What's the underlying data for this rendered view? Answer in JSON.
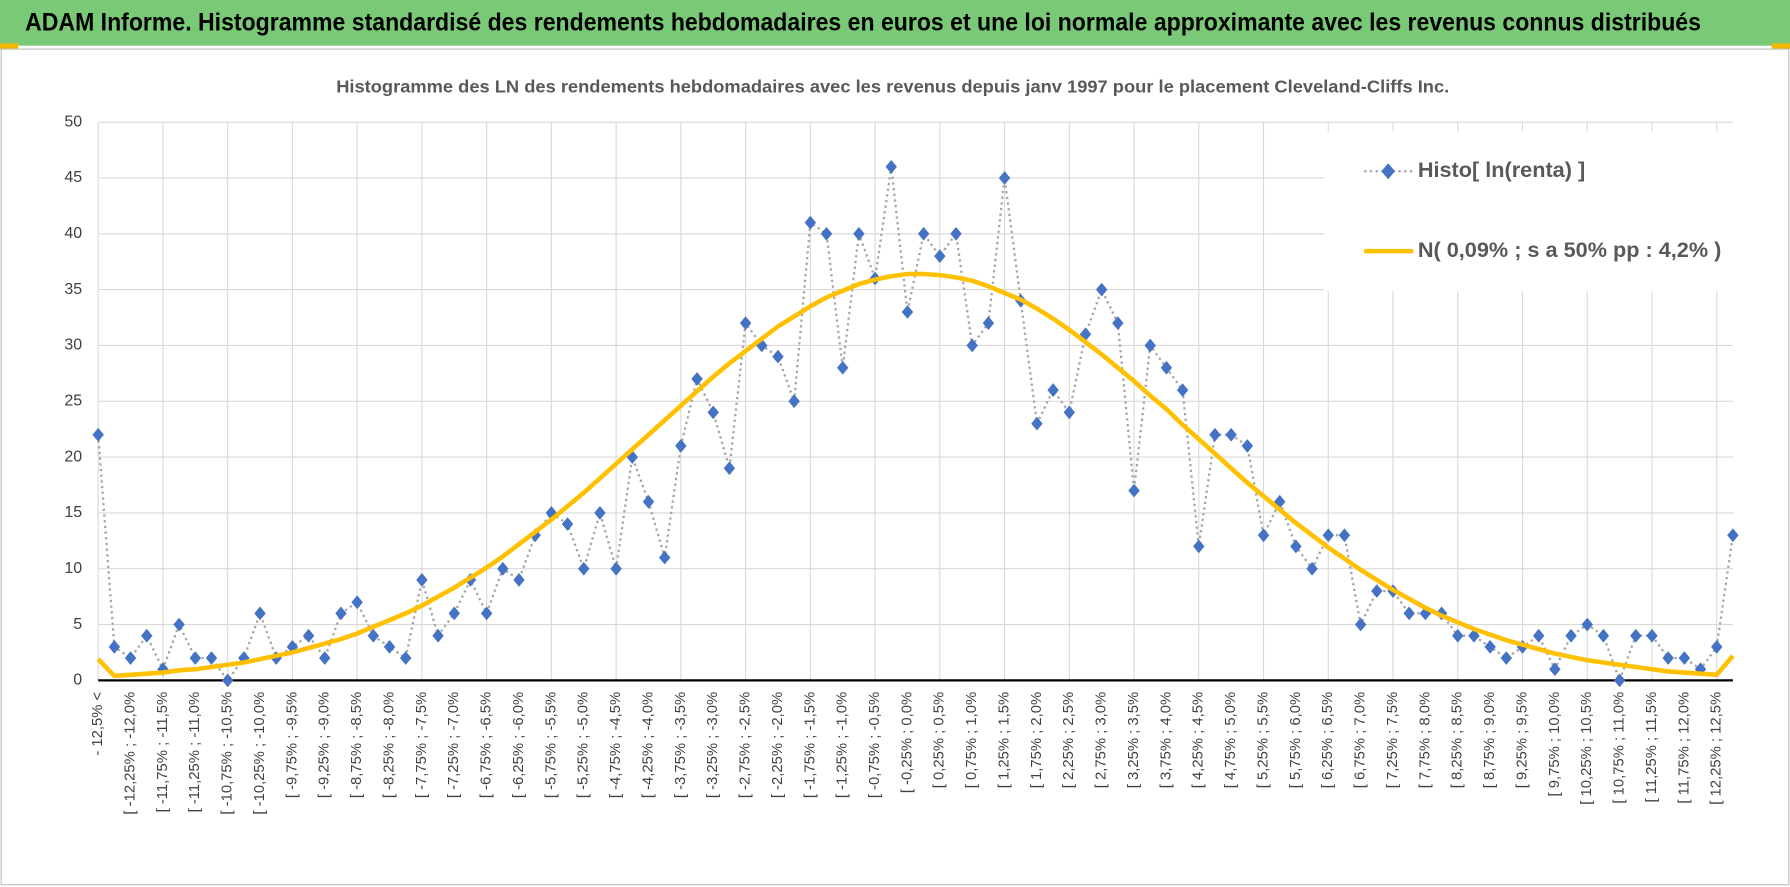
{
  "header": {
    "title": "ADAM Informe. Histogramme standardisé des rendements hebdomadaires en euros et une loi normale approximante avec les revenus connus distribués"
  },
  "chart_data": {
    "type": "line",
    "title": "Histogramme des LN des rendements hebdomadaires avec les revenus depuis janv 1997 pour le placement Cleveland-Cliffs Inc.",
    "categories": [
      "- 12,5% <",
      null,
      "[ -12,25% ; -12,0%",
      null,
      "[ -11,75% ; -11,5%",
      null,
      "[ -11,25% ; -11,0%",
      null,
      "[ -10,75% ; -10,5%",
      null,
      "[ -10,25% ; -10,0%",
      null,
      "[ -9,75% ; -9,5%",
      null,
      "[ -9,25% ; -9,0%",
      null,
      "[ -8,75% ; -8,5%",
      null,
      "[ -8,25% ; -8,0%",
      null,
      "[ -7,75% ; -7,5%",
      null,
      "[ -7,25% ; -7,0%",
      null,
      "[ -6,75% ; -6,5%",
      null,
      "[ -6,25% ; -6,0%",
      null,
      "[ -5,75% ; -5,5%",
      null,
      "[ -5,25% ; -5,0%",
      null,
      "[ -4,75% ; -4,5%",
      null,
      "[ -4,25% ; -4,0%",
      null,
      "[ -3,75% ; -3,5%",
      null,
      "[ -3,25% ; -3,0%",
      null,
      "[ -2,75% ; -2,5%",
      null,
      "[ -2,25% ; -2,0%",
      null,
      "[ -1,75% ; -1,5%",
      null,
      "[ -1,25% ; -1,0%",
      null,
      "[ -0,75% ; -0,5%",
      null,
      "[ -0,25% ; 0,0%",
      null,
      "[ 0,25% ; 0,5%",
      null,
      "[ 0,75% ; 1,0%",
      null,
      "[ 1,25% ; 1,5%",
      null,
      "[ 1,75% ; 2,0%",
      null,
      "[ 2,25% ; 2,5%",
      null,
      "[ 2,75% ; 3,0%",
      null,
      "[ 3,25% ; 3,5%",
      null,
      "[ 3,75% ; 4,0%",
      null,
      "[ 4,25% ; 4,5%",
      null,
      "[ 4,75% ; 5,0%",
      null,
      "[ 5,25% ; 5,5%",
      null,
      "[ 5,75% ; 6,0%",
      null,
      "[ 6,25% ; 6,5%",
      null,
      "[ 6,75% ; 7,0%",
      null,
      "[ 7,25% ; 7,5%",
      null,
      "[ 7,75% ; 8,0%",
      null,
      "[ 8,25% ; 8,5%",
      null,
      "[ 8,75% ; 9,0%",
      null,
      "[ 9,25% ; 9,5%",
      null,
      "[ 9,75% ; 10,0%",
      null,
      "[ 10,25% ; 10,5%",
      null,
      "[ 10,75% ; 11,0%",
      null,
      "[ 11,25% ; 11,5%",
      null,
      "[ 11,75% ; 12,0%",
      null,
      "[ 12,25% ; 12,5%",
      null
    ],
    "series": [
      {
        "name": "Histo[ ln(renta) ]",
        "color": "#4472c4",
        "line_color": "#a5a5a5",
        "line_dash": "dotted",
        "marker": "diamond",
        "values": [
          22,
          3,
          2,
          4,
          1,
          5,
          2,
          2,
          0,
          2,
          6,
          2,
          3,
          4,
          2,
          6,
          7,
          4,
          3,
          2,
          9,
          4,
          6,
          9,
          6,
          10,
          9,
          13,
          15,
          14,
          10,
          15,
          10,
          20,
          16,
          11,
          21,
          27,
          24,
          19,
          32,
          30,
          29,
          25,
          41,
          40,
          28,
          40,
          36,
          46,
          33,
          40,
          38,
          40,
          30,
          32,
          45,
          34,
          23,
          26,
          24,
          31,
          35,
          32,
          17,
          30,
          28,
          26,
          12,
          22,
          22,
          21,
          13,
          16,
          12,
          10,
          13,
          13,
          5,
          8,
          8,
          6,
          6,
          6,
          4,
          4,
          3,
          2,
          3,
          4,
          1,
          4,
          5,
          4,
          0,
          4,
          4,
          2,
          2,
          1,
          3,
          13
        ]
      },
      {
        "name": "N( 0,09% ; s a 50% pp : 4,2% )",
        "color": "#ffc000",
        "values": [
          1.9,
          0.4,
          0.5,
          0.6,
          0.7,
          0.9,
          1.0,
          1.2,
          1.4,
          1.6,
          1.9,
          2.2,
          2.5,
          2.9,
          3.3,
          3.7,
          4.2,
          4.8,
          5.4,
          6.0,
          6.7,
          7.5,
          8.3,
          9.2,
          10.1,
          11.1,
          12.2,
          13.3,
          14.4,
          15.6,
          16.8,
          18.1,
          19.4,
          20.7,
          22.0,
          23.3,
          24.6,
          25.9,
          27.2,
          28.4,
          29.5,
          30.6,
          31.7,
          32.6,
          33.5,
          34.3,
          34.9,
          35.5,
          35.9,
          36.2,
          36.4,
          36.4,
          36.3,
          36.1,
          35.8,
          35.3,
          34.7,
          34.1,
          33.3,
          32.4,
          31.4,
          30.3,
          29.2,
          28.0,
          26.8,
          25.5,
          24.3,
          22.9,
          21.6,
          20.3,
          19.0,
          17.7,
          16.5,
          15.3,
          14.1,
          13.0,
          11.9,
          10.9,
          9.9,
          9.0,
          8.1,
          7.3,
          6.5,
          5.8,
          5.2,
          4.6,
          4.1,
          3.6,
          3.2,
          2.8,
          2.4,
          2.1,
          1.8,
          1.6,
          1.4,
          1.2,
          1.0,
          0.8,
          0.7,
          0.6,
          0.5,
          2.2
        ]
      }
    ],
    "ylim": [
      0,
      50
    ],
    "yticks": [
      0,
      5,
      10,
      15,
      20,
      25,
      30,
      35,
      40,
      45,
      50
    ],
    "grid": true,
    "legend": "top-right"
  }
}
